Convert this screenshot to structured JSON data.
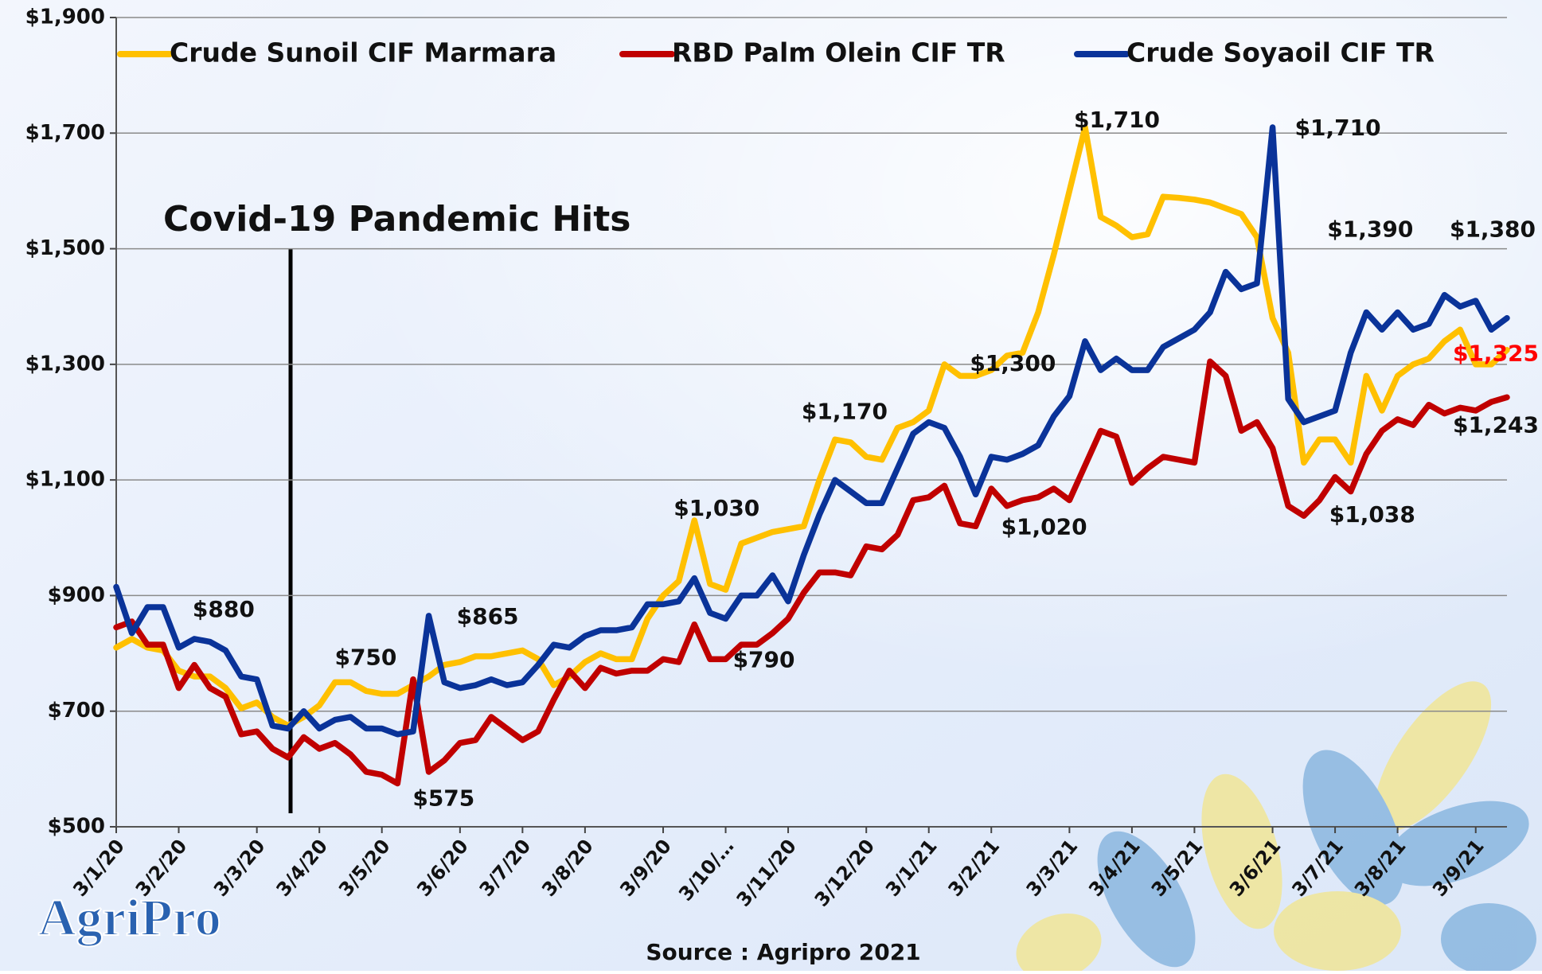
{
  "chart_data": {
    "type": "line",
    "annotation": "Covid-19 Pandemic Hits",
    "source": "Source : Agripro 2021",
    "logo": "AgriPro",
    "categories": [
      "3/1/20",
      null,
      null,
      null,
      "3/2/20",
      null,
      null,
      null,
      null,
      "3/3/20",
      null,
      null,
      null,
      "3/4/20",
      null,
      null,
      null,
      "3/5/20",
      null,
      null,
      null,
      null,
      "3/6/20",
      null,
      null,
      null,
      "3/7/20",
      null,
      null,
      null,
      "3/8/20",
      null,
      null,
      null,
      null,
      "3/9/20",
      null,
      null,
      null,
      "3/10/…",
      null,
      null,
      null,
      "3/11/20",
      null,
      null,
      null,
      null,
      "3/12/20",
      null,
      null,
      null,
      "3/1/21",
      null,
      null,
      null,
      "3/2/21",
      null,
      null,
      null,
      null,
      "3/3/21",
      null,
      null,
      null,
      "3/4/21",
      null,
      null,
      null,
      "3/5/21",
      null,
      null,
      null,
      null,
      "3/6/21",
      null,
      null,
      null,
      "3/7/21",
      null,
      null,
      null,
      "3/8/21",
      null,
      null,
      null,
      null,
      "3/9/21",
      null,
      null
    ],
    "series": [
      {
        "name": "Crude Sunoil CIF Marmara",
        "color": "#ffc000",
        "values": [
          810,
          825,
          810,
          805,
          770,
          760,
          760,
          740,
          705,
          715,
          690,
          675,
          690,
          710,
          750,
          750,
          735,
          730,
          730,
          745,
          760,
          780,
          785,
          795,
          795,
          800,
          805,
          790,
          745,
          760,
          785,
          800,
          790,
          790,
          860,
          900,
          925,
          1030,
          920,
          910,
          990,
          1000,
          1010,
          1015,
          1020,
          1100,
          1170,
          1165,
          1140,
          1135,
          1190,
          1200,
          1220,
          1300,
          1280,
          1280,
          1290,
          1315,
          1320,
          1390,
          1490,
          1600,
          1710,
          1555,
          1540,
          1520,
          1525,
          1590,
          1588,
          1585,
          1580,
          1570,
          1560,
          1520,
          1380,
          1320,
          1130,
          1170,
          1170,
          1130,
          1280,
          1220,
          1280,
          1300,
          1310,
          1340,
          1360,
          1300,
          1300,
          1325
        ],
        "value_labels": [
          null,
          null,
          null,
          null,
          null,
          null,
          null,
          null,
          null,
          null,
          null,
          null,
          null,
          null,
          null,
          "$750",
          null,
          null,
          null,
          null,
          null,
          null,
          null,
          null,
          null,
          null,
          null,
          null,
          null,
          null,
          null,
          null,
          null,
          null,
          null,
          null,
          null,
          "$1,030",
          null,
          null,
          null,
          null,
          null,
          null,
          null,
          null,
          "$1,170",
          null,
          null,
          null,
          null,
          null,
          null,
          "$1,300",
          null,
          null,
          null,
          null,
          null,
          null,
          null,
          null,
          "$1,710",
          null,
          null,
          null,
          null,
          null,
          null,
          null,
          null,
          null,
          null,
          null,
          null,
          null,
          null,
          null,
          null,
          null,
          null,
          null,
          null,
          null,
          null,
          null,
          null,
          null,
          null,
          "$1,325"
        ]
      },
      {
        "name": "RBD Palm Olein CIF TR",
        "color": "#c00000",
        "values": [
          845,
          855,
          815,
          815,
          740,
          780,
          740,
          725,
          660,
          665,
          635,
          620,
          655,
          635,
          645,
          625,
          595,
          590,
          575,
          755,
          595,
          615,
          645,
          650,
          690,
          670,
          650,
          665,
          720,
          770,
          740,
          775,
          765,
          770,
          770,
          790,
          785,
          850,
          790,
          790,
          815,
          815,
          835,
          860,
          905,
          940,
          940,
          935,
          985,
          980,
          1005,
          1065,
          1070,
          1090,
          1025,
          1020,
          1085,
          1055,
          1065,
          1070,
          1085,
          1065,
          1125,
          1185,
          1175,
          1095,
          1120,
          1140,
          1135,
          1130,
          1305,
          1280,
          1185,
          1200,
          1155,
          1055,
          1038,
          1065,
          1105,
          1080,
          1145,
          1185,
          1205,
          1195,
          1230,
          1215,
          1225,
          1220,
          1235,
          1243
        ],
        "value_labels": [
          null,
          null,
          null,
          null,
          null,
          null,
          null,
          null,
          null,
          null,
          null,
          null,
          null,
          null,
          null,
          null,
          null,
          null,
          "$575",
          null,
          null,
          null,
          null,
          null,
          null,
          null,
          null,
          null,
          null,
          null,
          null,
          null,
          null,
          null,
          null,
          null,
          null,
          null,
          null,
          "$790",
          null,
          null,
          null,
          null,
          null,
          null,
          null,
          null,
          null,
          null,
          null,
          null,
          null,
          null,
          null,
          "$1,020",
          null,
          null,
          null,
          null,
          null,
          null,
          null,
          null,
          null,
          null,
          null,
          null,
          null,
          null,
          null,
          null,
          null,
          null,
          null,
          null,
          "$1,038",
          null,
          null,
          null,
          null,
          null,
          null,
          null,
          null,
          null,
          null,
          null,
          null,
          "$1,243"
        ]
      },
      {
        "name": "Crude Soyaoil CIF TR",
        "color": "#0a3399",
        "values": [
          915,
          835,
          880,
          880,
          810,
          825,
          820,
          805,
          760,
          755,
          675,
          670,
          700,
          670,
          685,
          690,
          670,
          670,
          660,
          665,
          865,
          750,
          740,
          745,
          755,
          745,
          750,
          780,
          815,
          810,
          830,
          840,
          840,
          845,
          885,
          885,
          890,
          930,
          870,
          860,
          900,
          900,
          935,
          890,
          970,
          1040,
          1100,
          1080,
          1060,
          1060,
          1120,
          1180,
          1200,
          1190,
          1140,
          1075,
          1140,
          1135,
          1145,
          1160,
          1210,
          1245,
          1340,
          1290,
          1310,
          1290,
          1290,
          1330,
          1345,
          1360,
          1390,
          1460,
          1430,
          1440,
          1710,
          1240,
          1200,
          1210,
          1220,
          1320,
          1390,
          1360,
          1390,
          1360,
          1370,
          1420,
          1400,
          1410,
          1360,
          1380
        ],
        "value_labels": [
          null,
          null,
          null,
          "$880",
          null,
          null,
          null,
          null,
          null,
          null,
          null,
          null,
          null,
          null,
          null,
          null,
          null,
          null,
          null,
          null,
          "$865",
          null,
          null,
          null,
          null,
          null,
          null,
          null,
          null,
          null,
          null,
          null,
          null,
          null,
          null,
          null,
          null,
          null,
          null,
          null,
          null,
          null,
          null,
          null,
          null,
          null,
          null,
          null,
          null,
          null,
          null,
          null,
          null,
          null,
          null,
          null,
          null,
          null,
          null,
          null,
          null,
          null,
          null,
          null,
          null,
          null,
          null,
          null,
          null,
          null,
          null,
          null,
          null,
          null,
          "$1,710",
          null,
          null,
          null,
          null,
          null,
          "$1,390",
          null,
          null,
          null,
          null,
          null,
          null,
          null,
          null,
          "$1,380"
        ]
      }
    ],
    "ylim": [
      500,
      1900
    ],
    "yticks": [
      {
        "value": 500,
        "label": "$500"
      },
      {
        "value": 700,
        "label": "$700"
      },
      {
        "value": 900,
        "label": "$900"
      },
      {
        "value": 1100,
        "label": "$1,100"
      },
      {
        "value": 1300,
        "label": "$1,300"
      },
      {
        "value": 1500,
        "label": "$1,500"
      },
      {
        "value": 1700,
        "label": "$1,700"
      },
      {
        "value": 1900,
        "label": "$1,900"
      }
    ],
    "grid": true,
    "legend": "top"
  }
}
